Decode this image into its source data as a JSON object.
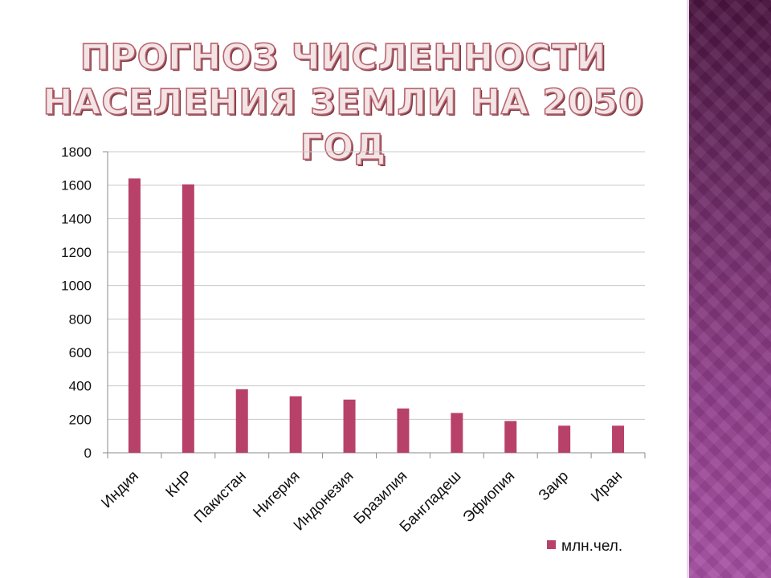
{
  "slide": {
    "title_line1": "ПРОГНОЗ ЧИСЛЕННОСТИ",
    "title_line2": "НАСЕЛЕНИЯ ЗЕМЛИ НА 2050 ГОД"
  },
  "colors": {
    "bar": "#b8416a",
    "grid": "#c8c8c8",
    "axis": "#8a8a8a",
    "title_fill": "#f3e4e6",
    "title_outline": "#b8656f"
  },
  "chart_data": {
    "type": "bar",
    "title": "ПРОГНОЗ ЧИСЛЕННОСТИ НАСЕЛЕНИЯ ЗЕМЛИ НА 2050 ГОД",
    "categories": [
      "Индия",
      "КНР",
      "Пакистан",
      "Нигерия",
      "Индонезия",
      "Бразилия",
      "Бангладеш",
      "Эфиопия",
      "Заир",
      "Иран"
    ],
    "series": [
      {
        "name": "млн.чел.",
        "values": [
          1640,
          1605,
          380,
          338,
          318,
          265,
          238,
          190,
          162,
          162
        ]
      }
    ],
    "ylim": [
      0,
      1800
    ],
    "yticks": [
      0,
      200,
      400,
      600,
      800,
      1000,
      1200,
      1400,
      1600,
      1800
    ],
    "grid": true,
    "legend_position": "bottom-right"
  }
}
